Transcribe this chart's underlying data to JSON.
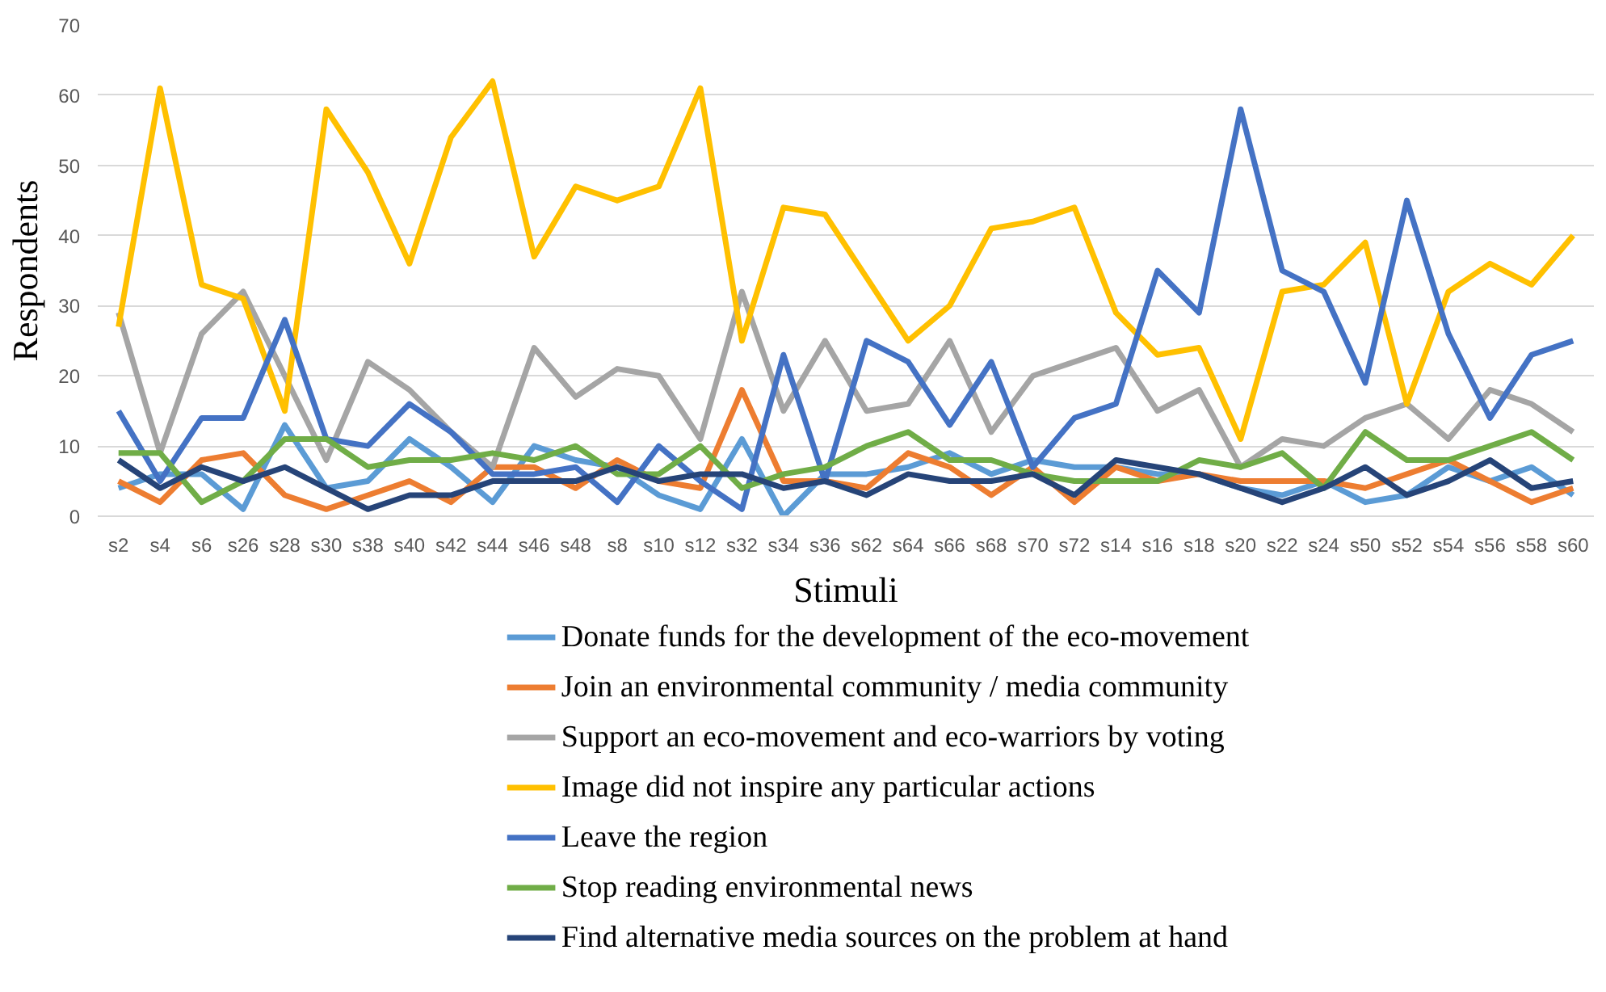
{
  "chart_data": {
    "type": "line",
    "xlabel": "Stimuli",
    "ylabel": "Respondents",
    "categories": [
      "s2",
      "s4",
      "s6",
      "s26",
      "s28",
      "s30",
      "s38",
      "s40",
      "s42",
      "s44",
      "s46",
      "s48",
      "s8",
      "s10",
      "s12",
      "s32",
      "s34",
      "s36",
      "s62",
      "s64",
      "s66",
      "s68",
      "s70",
      "s72",
      "s14",
      "s16",
      "s18",
      "s20",
      "s22",
      "s24",
      "s50",
      "s52",
      "s54",
      "s56",
      "s58",
      "s60"
    ],
    "ylim": [
      0,
      70
    ],
    "yticks": [
      0,
      10,
      20,
      30,
      40,
      50,
      60,
      70
    ],
    "grid": "y",
    "legend": "bottom",
    "marker": "none",
    "line_style": "solid",
    "series": [
      {
        "name": "Donate funds for the development of the eco-movement",
        "color": "#5b9bd5",
        "values": [
          4,
          6,
          6,
          1,
          13,
          4,
          5,
          11,
          7,
          2,
          10,
          8,
          7,
          3,
          1,
          11,
          0,
          6,
          6,
          7,
          9,
          6,
          8,
          7,
          7,
          6,
          6,
          4,
          3,
          5,
          2,
          3,
          7,
          5,
          7,
          3
        ]
      },
      {
        "name": "Join an environmental community / media community",
        "color": "#ed7d31",
        "values": [
          5,
          2,
          8,
          9,
          3,
          1,
          3,
          5,
          2,
          7,
          7,
          4,
          8,
          5,
          4,
          18,
          5,
          5,
          4,
          9,
          7,
          3,
          7,
          2,
          7,
          5,
          6,
          5,
          5,
          5,
          4,
          6,
          8,
          5,
          2,
          4
        ]
      },
      {
        "name": "Support an eco-movement and eco-warriors by voting",
        "color": "#a5a5a5",
        "values": [
          29,
          9,
          26,
          32,
          20,
          8,
          22,
          18,
          12,
          7,
          24,
          17,
          21,
          20,
          11,
          32,
          15,
          25,
          15,
          16,
          25,
          12,
          20,
          22,
          24,
          15,
          18,
          7,
          11,
          10,
          14,
          16,
          11,
          18,
          16,
          12
        ]
      },
      {
        "name": "Image did not inspire any particular actions",
        "color": "#ffc000",
        "values": [
          27,
          61,
          33,
          31,
          15,
          58,
          49,
          36,
          54,
          62,
          37,
          47,
          45,
          47,
          61,
          25,
          44,
          43,
          34,
          25,
          30,
          41,
          42,
          44,
          29,
          23,
          24,
          11,
          32,
          33,
          39,
          16,
          32,
          36,
          33,
          40
        ]
      },
      {
        "name": "Leave the region",
        "color": "#4472c4",
        "values": [
          15,
          5,
          14,
          14,
          28,
          11,
          10,
          16,
          12,
          6,
          6,
          7,
          2,
          10,
          5,
          1,
          23,
          5,
          25,
          22,
          13,
          22,
          7,
          14,
          16,
          35,
          29,
          58,
          35,
          32,
          19,
          45,
          26,
          14,
          23,
          25
        ]
      },
      {
        "name": "Stop reading environmental news",
        "color": "#70ad47",
        "values": [
          9,
          9,
          2,
          5,
          11,
          11,
          7,
          8,
          8,
          9,
          8,
          10,
          6,
          6,
          10,
          4,
          6,
          7,
          10,
          12,
          8,
          8,
          6,
          5,
          5,
          5,
          8,
          7,
          9,
          4,
          12,
          8,
          8,
          10,
          12,
          8
        ]
      },
      {
        "name": "Find alternative media sources on the problem at hand",
        "color": "#264478",
        "values": [
          8,
          4,
          7,
          5,
          7,
          4,
          1,
          3,
          3,
          5,
          5,
          5,
          7,
          5,
          6,
          6,
          4,
          5,
          3,
          6,
          5,
          5,
          6,
          3,
          8,
          7,
          6,
          4,
          2,
          4,
          7,
          3,
          5,
          8,
          4,
          5
        ]
      }
    ]
  }
}
